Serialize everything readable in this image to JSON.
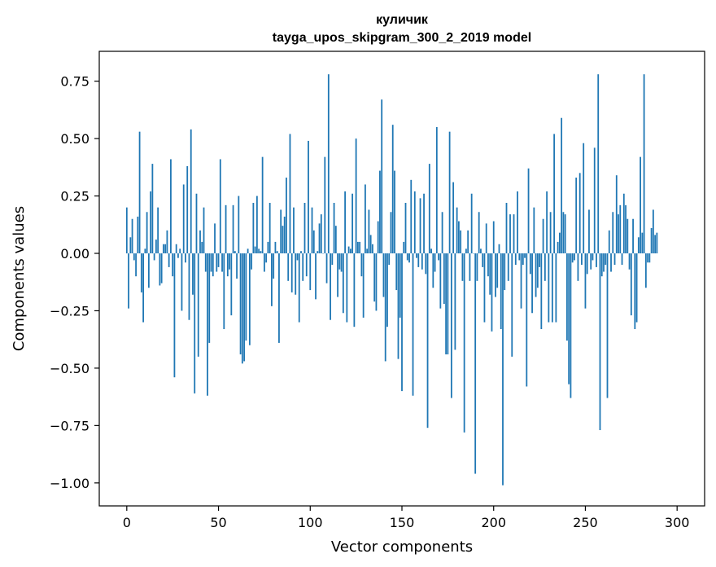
{
  "chart_data": {
    "type": "bar",
    "title": "куличик",
    "subtitle": "tayga_upos_skipgram_300_2_2019 model",
    "xlabel": "Vector components",
    "ylabel": "Components values",
    "xlim": [
      -15,
      315
    ],
    "ylim": [
      -1.1,
      0.88
    ],
    "xticks": [
      0,
      50,
      100,
      150,
      200,
      250,
      300
    ],
    "xtick_labels": [
      "0",
      "50",
      "100",
      "150",
      "200",
      "250",
      "300"
    ],
    "yticks": [
      -1.0,
      -0.75,
      -0.5,
      -0.25,
      0.0,
      0.25,
      0.5,
      0.75
    ],
    "ytick_labels": [
      "−1.00",
      "−0.75",
      "−0.50",
      "−0.25",
      "0.00",
      "0.25",
      "0.50",
      "0.75"
    ],
    "grid": false,
    "bar_color": "#1f77b4",
    "values": [
      0.2,
      -0.24,
      0.07,
      0.15,
      -0.03,
      -0.1,
      0.16,
      0.53,
      -0.17,
      -0.3,
      0.02,
      0.18,
      -0.15,
      0.27,
      0.39,
      -0.03,
      0.06,
      0.2,
      -0.14,
      -0.13,
      0.04,
      0.04,
      0.1,
      -0.06,
      0.41,
      -0.1,
      -0.54,
      0.04,
      -0.02,
      0.02,
      -0.25,
      0.3,
      -0.04,
      0.38,
      -0.29,
      0.54,
      -0.18,
      -0.61,
      0.26,
      -0.45,
      0.1,
      0.05,
      0.2,
      -0.08,
      -0.62,
      -0.39,
      -0.08,
      -0.1,
      0.13,
      -0.08,
      -0.06,
      0.41,
      -0.08,
      -0.33,
      0.21,
      -0.1,
      -0.07,
      -0.27,
      0.21,
      0.01,
      -0.11,
      0.25,
      -0.44,
      -0.48,
      -0.47,
      -0.38,
      0.02,
      -0.4,
      -0.07,
      0.22,
      0.03,
      0.25,
      0.02,
      0.01,
      0.42,
      -0.08,
      -0.04,
      0.05,
      0.22,
      -0.23,
      -0.11,
      0.05,
      0.01,
      -0.39,
      0.19,
      0.12,
      0.16,
      0.33,
      -0.12,
      0.52,
      -0.17,
      0.2,
      -0.18,
      -0.03,
      -0.3,
      0.01,
      -0.12,
      0.22,
      -0.1,
      0.49,
      -0.16,
      0.2,
      0.1,
      -0.2,
      0.01,
      0.13,
      0.17,
      0.0,
      0.42,
      -0.13,
      0.78,
      -0.29,
      -0.05,
      0.22,
      0.12,
      -0.19,
      -0.07,
      -0.08,
      -0.26,
      0.27,
      -0.3,
      0.03,
      0.02,
      0.26,
      -0.32,
      0.5,
      0.05,
      0.05,
      -0.1,
      -0.28,
      0.3,
      0.02,
      0.19,
      0.08,
      0.04,
      -0.21,
      -0.25,
      0.14,
      0.36,
      0.67,
      -0.19,
      -0.47,
      -0.32,
      -0.05,
      0.18,
      0.56,
      0.36,
      -0.16,
      -0.46,
      -0.28,
      -0.6,
      0.05,
      0.22,
      -0.03,
      -0.04,
      0.32,
      -0.62,
      0.27,
      -0.02,
      -0.06,
      0.24,
      -0.07,
      0.26,
      -0.09,
      -0.76,
      0.39,
      0.02,
      -0.15,
      -0.08,
      0.55,
      -0.03,
      -0.24,
      0.18,
      -0.22,
      -0.44,
      -0.44,
      0.53,
      -0.63,
      0.31,
      -0.42,
      0.2,
      0.14,
      0.1,
      -0.12,
      -0.78,
      0.02,
      0.1,
      -0.12,
      0.26,
      0.0,
      -0.96,
      -0.12,
      0.18,
      0.02,
      -0.06,
      -0.3,
      0.13,
      -0.1,
      -0.18,
      -0.34,
      0.14,
      -0.19,
      -0.15,
      0.04,
      -0.33,
      -1.01,
      -0.16,
      0.22,
      -0.12,
      0.17,
      -0.45,
      0.17,
      -0.05,
      0.27,
      -0.03,
      -0.24,
      -0.05,
      -0.02,
      -0.58,
      0.37,
      -0.09,
      -0.26,
      0.2,
      -0.19,
      -0.15,
      -0.06,
      -0.33,
      0.15,
      -0.12,
      0.27,
      -0.3,
      0.18,
      -0.3,
      0.52,
      -0.3,
      0.05,
      0.09,
      0.59,
      0.18,
      0.17,
      -0.38,
      -0.57,
      -0.63,
      -0.04,
      -0.03,
      0.33,
      -0.12,
      0.35,
      -0.05,
      0.48,
      -0.24,
      -0.09,
      0.19,
      -0.07,
      -0.03,
      0.46,
      -0.06,
      0.78,
      -0.77,
      -0.1,
      -0.08,
      -0.05,
      -0.63,
      0.1,
      -0.08,
      0.18,
      -0.05,
      0.34,
      0.17,
      0.21,
      -0.05,
      0.26,
      0.21,
      0.15,
      -0.07,
      -0.27,
      0.15,
      -0.33,
      -0.3,
      0.07,
      0.42,
      0.09,
      0.78,
      -0.15,
      -0.04,
      -0.04,
      0.11,
      0.19,
      0.08,
      0.09
    ]
  }
}
